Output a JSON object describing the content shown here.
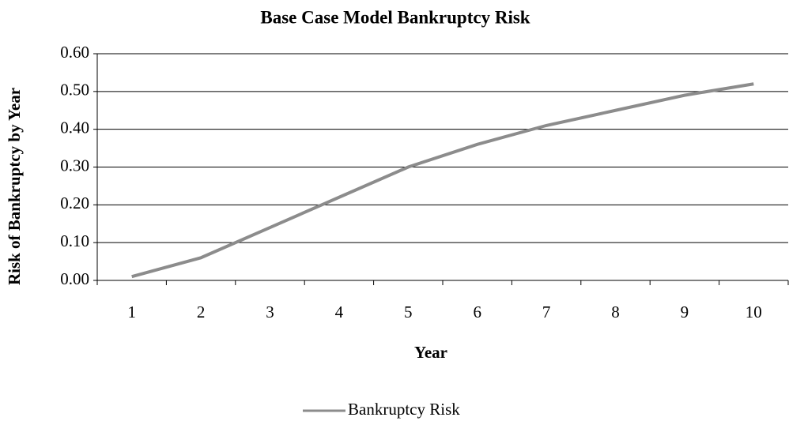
{
  "chart_data": {
    "type": "line",
    "title": "Base Case Model Bankruptcy Risk",
    "x_label": "Year",
    "y_label": "Risk of Bankruptcy by Year",
    "categories": [
      1,
      2,
      3,
      4,
      5,
      6,
      7,
      8,
      9,
      10
    ],
    "series": [
      {
        "name": "Bankruptcy Risk",
        "color": "#8c8c8c",
        "values": [
          0.01,
          0.06,
          0.14,
          0.22,
          0.3,
          0.36,
          0.41,
          0.45,
          0.49,
          0.52
        ]
      }
    ],
    "ylim": [
      0,
      0.6
    ],
    "yticks": [
      {
        "value": 0,
        "label": "0.00"
      },
      {
        "value": 0.1,
        "label": "0.10"
      },
      {
        "value": 0.2,
        "label": "0.20"
      },
      {
        "value": 0.3,
        "label": "0.30"
      },
      {
        "value": 0.4,
        "label": "0.40"
      },
      {
        "value": 0.5,
        "label": "0.50"
      },
      {
        "value": 0.6,
        "label": "0.60"
      }
    ],
    "grid": true,
    "legend": "bottom"
  }
}
